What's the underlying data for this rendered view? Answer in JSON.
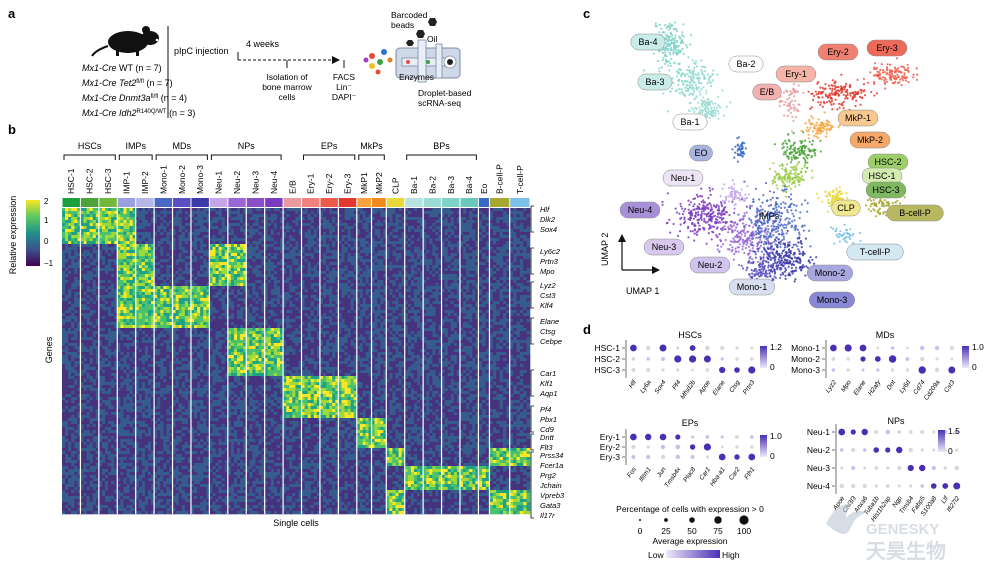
{
  "panels": {
    "a": "a",
    "b": "b",
    "c": "c",
    "d": "d"
  },
  "panel_a": {
    "mice": [
      {
        "prefix": "Mx1-Cre",
        "geno": " WT",
        "sup": "",
        "n": " (n = 7)"
      },
      {
        "prefix": "Mx1-Cre",
        "geno": " Tet2",
        "sup": "fl/fl",
        "n": " (n = 7)"
      },
      {
        "prefix": "Mx1-Cre",
        "geno": " Dnmt3a",
        "sup": "fl/fl",
        "n": " (n = 4)"
      },
      {
        "prefix": "Mx1-Cre",
        "geno": " Idh2",
        "sup": "R140Q/WT",
        "n": " (n = 3)"
      }
    ],
    "injection": "pIpC injection",
    "weeks": "4 weeks",
    "isolation": [
      "Isolation of",
      "bone marrow",
      "cells"
    ],
    "facs": [
      "FACS",
      "Lin⁻",
      "DAPI⁻"
    ],
    "beads": [
      "Barcoded",
      "beads"
    ],
    "oil": "Oil",
    "enzymes": "Enzymes",
    "droplet": [
      "Droplet-based",
      "scRNA-seq"
    ]
  },
  "panel_b": {
    "ylabel": "Relative expression",
    "genes_label": "Genes",
    "xlabel": "Single cells",
    "scale_ticks": [
      "2",
      "1",
      "0",
      "−1"
    ],
    "groups": [
      "HSCs",
      "IMPs",
      "MDs",
      "NPs",
      "EPs",
      "MkPs",
      "BPs"
    ],
    "clusters": [
      {
        "name": "HSC-1",
        "color": "#1b9e3e"
      },
      {
        "name": "HSC-2",
        "color": "#4ca33a"
      },
      {
        "name": "HSC-3",
        "color": "#72b83a"
      },
      {
        "name": "IMP-1",
        "color": "#9aa0e0"
      },
      {
        "name": "IMP-2",
        "color": "#b5b5e8"
      },
      {
        "name": "Mono-1",
        "color": "#4a68c4"
      },
      {
        "name": "Mono-2",
        "color": "#5a4fc0"
      },
      {
        "name": "Mono-3",
        "color": "#3b3aa8"
      },
      {
        "name": "Neu-1",
        "color": "#c6a6e8"
      },
      {
        "name": "Neu-2",
        "color": "#9a66d6"
      },
      {
        "name": "Neu-3",
        "color": "#8a4fc8"
      },
      {
        "name": "Neu-4",
        "color": "#7a3cbe"
      },
      {
        "name": "E/B",
        "color": "#e89aa0"
      },
      {
        "name": "Ery-1",
        "color": "#f08080"
      },
      {
        "name": "Ery-2",
        "color": "#ee5a4a"
      },
      {
        "name": "Ery-3",
        "color": "#e2382e"
      },
      {
        "name": "MkP1",
        "color": "#f7a23c"
      },
      {
        "name": "MkP2",
        "color": "#f08a1e"
      },
      {
        "name": "CLP",
        "color": "#e8d83a"
      },
      {
        "name": "Ba-1",
        "color": "#b7e4e0"
      },
      {
        "name": "Ba-2",
        "color": "#9adcd4"
      },
      {
        "name": "Ba-3",
        "color": "#7fd2c8"
      },
      {
        "name": "Ba-4",
        "color": "#6ac8bc"
      },
      {
        "name": "Eo",
        "color": "#3a68c8"
      },
      {
        "name": "B-cell-P",
        "color": "#a8a830"
      },
      {
        "name": "T-cell-P",
        "color": "#7ac0e8"
      }
    ],
    "gene_labels": [
      [
        "Hlf",
        "Dlk2",
        "Sox4"
      ],
      [
        "Ly6c2",
        "Prtn3",
        "Mpo"
      ],
      [
        "Lyz2",
        "Cst3",
        "Klf4"
      ],
      [
        "Elane",
        "Ctsg",
        "Cebpe"
      ],
      [
        "Car1",
        "Klf1",
        "Aqp1"
      ],
      [
        "Pf4",
        "Pbx1",
        "Cd9"
      ],
      [
        "Dntt",
        "Flt3"
      ],
      [
        "Prss34",
        "Fcer1a",
        "Prg2",
        "Jchain",
        "Vpreb3",
        "Gata3",
        "Il17r"
      ]
    ]
  },
  "panel_c": {
    "axis_x": "UMAP 1",
    "axis_y": "UMAP 2",
    "labels": [
      {
        "text": "Ba-4",
        "bg": "#c8ece8"
      },
      {
        "text": "Ba-3",
        "bg": "#c8ece8"
      },
      {
        "text": "Ba-2",
        "bg": "#ffffff"
      },
      {
        "text": "Ba-1",
        "bg": "#ffffff"
      },
      {
        "text": "Ery-1",
        "bg": "#f6b3a8"
      },
      {
        "text": "Ery-2",
        "bg": "#f08070"
      },
      {
        "text": "Ery-3",
        "bg": "#ec6a5a"
      },
      {
        "text": "E/B",
        "bg": "#f2b0b0"
      },
      {
        "text": "MkP-1",
        "bg": "#f8c890"
      },
      {
        "text": "MkP-2",
        "bg": "#f5a868"
      },
      {
        "text": "EO",
        "bg": "#a8b4e0"
      },
      {
        "text": "HSC-2",
        "bg": "#9ccf6a"
      },
      {
        "text": "HSC-1",
        "bg": "#d4ecb0"
      },
      {
        "text": "HSC-3",
        "bg": "#7fb860"
      },
      {
        "text": "Neu-1",
        "bg": "#ece4f4"
      },
      {
        "text": "IMPs",
        "bg": "none"
      },
      {
        "text": "CLP",
        "bg": "#f0e890"
      },
      {
        "text": "B-cell-P",
        "bg": "#b8b860"
      },
      {
        "text": "Neu-4",
        "bg": "#a890d8"
      },
      {
        "text": "Neu-3",
        "bg": "#d8c8ee"
      },
      {
        "text": "T-cell-P",
        "bg": "#d4e8f4"
      },
      {
        "text": "Neu-2",
        "bg": "#d0c4ec"
      },
      {
        "text": "Mono-2",
        "bg": "#a8a8e0"
      },
      {
        "text": "Mono-1",
        "bg": "#d8e0f0"
      },
      {
        "text": "Mono-3",
        "bg": "#8888d4"
      }
    ]
  },
  "panel_d": {
    "hscs": {
      "title": "HSCs",
      "rows": [
        "HSC-1",
        "HSC-2",
        "HSC-3"
      ],
      "genes": [
        "Hlf",
        "Ly6a",
        "Sox4",
        "Pf4",
        "Mfsd2b",
        "Apoe",
        "Elane",
        "Ctsg",
        "Prtn3"
      ],
      "scale_max": "1.2",
      "scale_min": "0"
    },
    "mds": {
      "title": "MDs",
      "rows": [
        "Mono-1",
        "Mono-2",
        "Mono-3"
      ],
      "genes": [
        "Lyz2",
        "Mpo",
        "Elane",
        "H2afy",
        "Dnt",
        "Ly6d",
        "Cd74",
        "Cd209a",
        "Cst3"
      ],
      "scale_max": "1.0",
      "scale_min": "0"
    },
    "eps": {
      "title": "EPs",
      "rows": [
        "Ery-1",
        "Ery-2",
        "Ery-3"
      ],
      "genes": [
        "Fos",
        "Ifitm1",
        "Jun",
        "Tmsb4x",
        "Plac8",
        "Car1",
        "Hba-a1",
        "Car2",
        "Fth1"
      ],
      "scale_max": "1.0",
      "scale_min": "0"
    },
    "nps": {
      "title": "NPs",
      "rows": [
        "Neu-1",
        "Neu-2",
        "Neu-3",
        "Neu-4"
      ],
      "genes": [
        "Apoe",
        "Chi3l3",
        "Anxa6",
        "Tuba1b",
        "Hist1h2ap",
        "Ngp",
        "Tmsb4",
        "Fabp5",
        "S100a8",
        "Ltf",
        "Ifi27l2"
      ],
      "scale_max": "1.5",
      "scale_min": "0"
    },
    "legend": {
      "size_title": "Percentage of cells with expression > 0",
      "sizes": [
        "0",
        "25",
        "50",
        "75",
        "100"
      ],
      "color_title": "Average expression",
      "low": "Low",
      "high": "High"
    }
  },
  "watermark": {
    "brand": "GENESKY",
    "cn": "天昊生物"
  }
}
